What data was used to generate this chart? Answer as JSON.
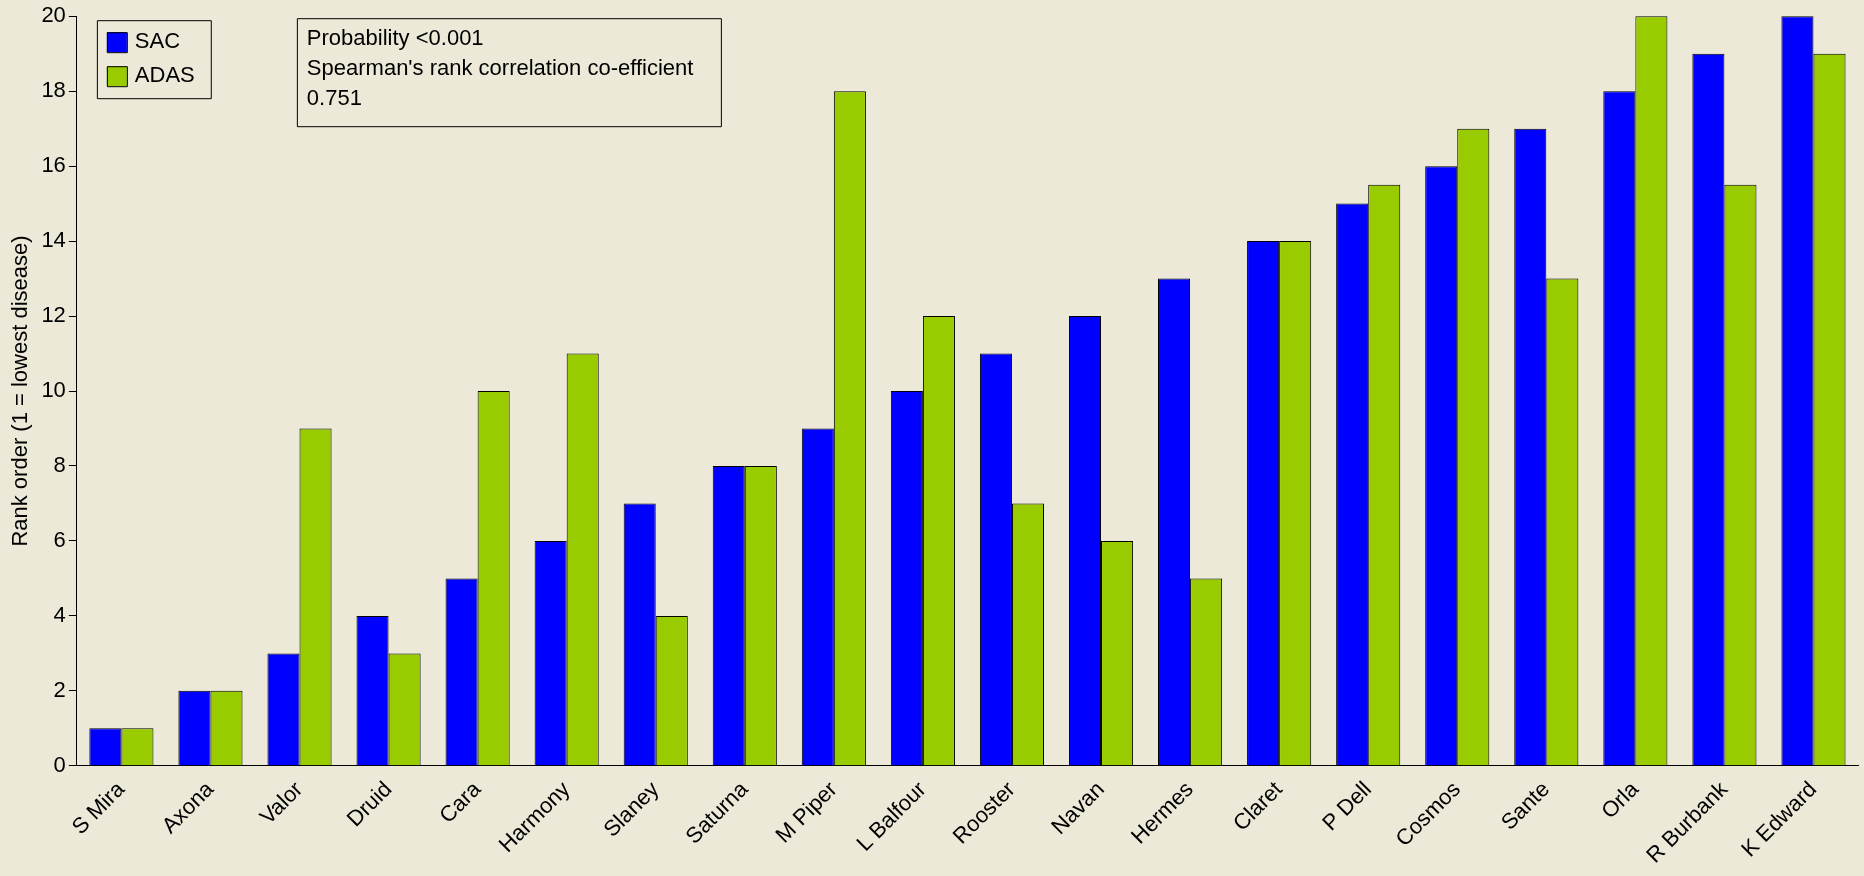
{
  "chart_data": {
    "type": "bar",
    "ylabel": "Rank order (1 = lowest disease)",
    "categories": [
      "S Mira",
      "Axona",
      "Valor",
      "Druid",
      "Cara",
      "Harmony",
      "Slaney",
      "Saturna",
      "M Piper",
      "L Balfour",
      "Rooster",
      "Navan",
      "Hermes",
      "Claret",
      "P Dell",
      "Cosmos",
      "Sante",
      "Orla",
      "R Burbank",
      "K Edward"
    ],
    "series": [
      {
        "name": "SAC",
        "color": "#0000ff",
        "values": [
          1,
          2,
          3,
          4,
          5,
          6,
          7,
          8,
          9,
          10,
          11,
          12,
          13,
          14,
          15,
          16,
          17,
          18,
          19,
          20
        ]
      },
      {
        "name": "ADAS",
        "color": "#99cc00",
        "values": [
          1,
          2,
          9,
          3,
          10,
          11,
          4,
          8,
          18,
          12,
          7,
          6,
          5,
          14,
          15.5,
          17,
          13,
          20,
          15.5,
          19
        ]
      }
    ],
    "ylim": [
      0,
      20
    ],
    "yticks": [
      0,
      2,
      4,
      6,
      8,
      10,
      12,
      14,
      16,
      18,
      20
    ],
    "grid": false,
    "legend": "top left",
    "annotations": [
      "Probability <0.001",
      "Spearman's rank correlation co-efficient 0.751"
    ]
  }
}
